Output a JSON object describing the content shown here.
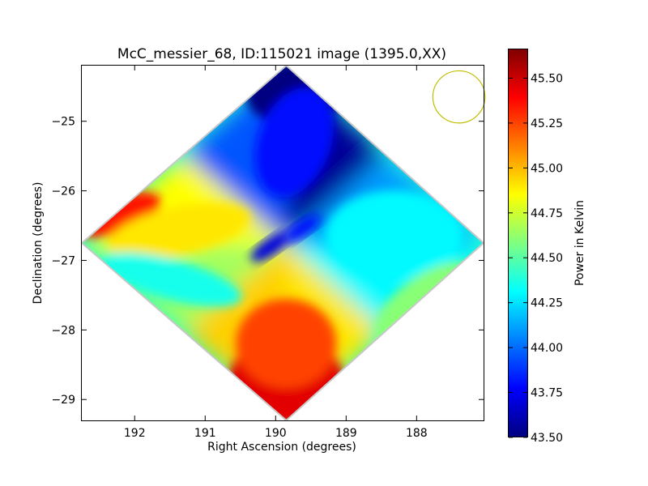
{
  "chart_data": {
    "type": "heatmap",
    "title": "McC_messier_68, ID:115021 image (1395.0,XX)",
    "xlabel": "Right Ascension (degrees)",
    "ylabel": "Declination (degrees)",
    "xlim": [
      192.75,
      187.05
    ],
    "ylim": [
      -29.3,
      -24.2
    ],
    "x_ticks": [
      192,
      191,
      190,
      189,
      188
    ],
    "y_ticks": [
      -25,
      -26,
      -27,
      -28,
      -29
    ],
    "x_tick_labels": [
      "192",
      "191",
      "190",
      "189",
      "188"
    ],
    "y_tick_labels": [
      "−25",
      "−26",
      "−27",
      "−28",
      "−29"
    ],
    "field_center": [
      189.85,
      -26.75
    ],
    "field_corners": [
      {
        "ra": 189.85,
        "dec": -24.2
      },
      {
        "ra": 187.05,
        "dec": -26.75
      },
      {
        "ra": 189.85,
        "dec": -29.3
      },
      {
        "ra": 192.75,
        "dec": -26.75
      }
    ],
    "beam": {
      "ra": 187.4,
      "dec": -24.65,
      "radius_deg": 0.37,
      "color": "#bfbf00"
    },
    "colorbar": {
      "label": "Power in Kelvin",
      "min": 43.5,
      "max": 45.66,
      "ticks": [
        43.5,
        43.75,
        44.0,
        44.25,
        44.5,
        44.75,
        45.0,
        45.25,
        45.5
      ],
      "tick_labels": [
        "43.50",
        "43.75",
        "44.00",
        "44.25",
        "44.50",
        "44.75",
        "45.00",
        "45.25",
        "45.50"
      ],
      "colormap": "jet"
    },
    "regions": [
      {
        "area": "top (north corner)",
        "value_range": [
          43.5,
          43.8
        ]
      },
      {
        "area": "right (west corner)",
        "value_range": [
          44.25,
          44.35
        ]
      },
      {
        "area": "bottom (south corner)",
        "value_range": [
          45.2,
          45.6
        ]
      },
      {
        "area": "left (east corner)",
        "value_range": [
          45.3,
          45.4
        ]
      },
      {
        "area": "center",
        "value_range": [
          43.6,
          44.4
        ]
      }
    ],
    "grid": false
  }
}
